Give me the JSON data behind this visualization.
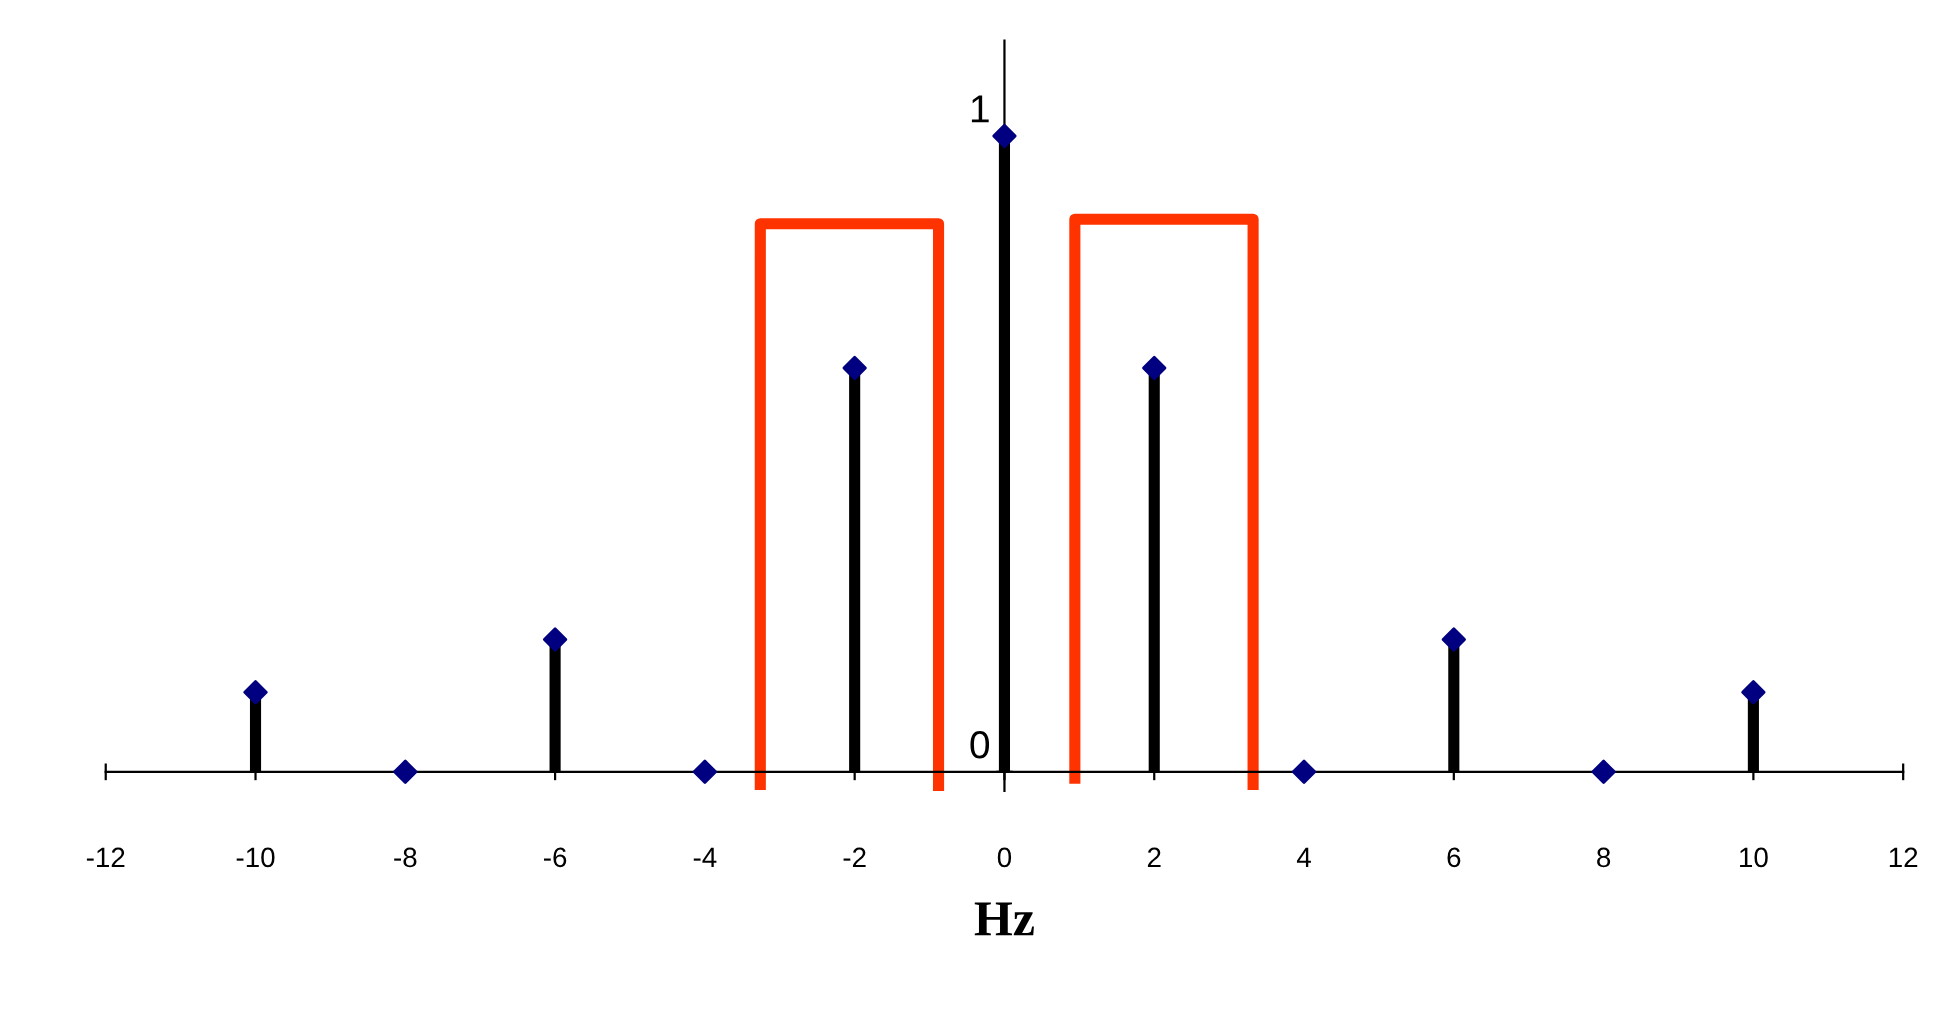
{
  "chart_data": {
    "type": "lollipop",
    "xlabel": "Hz",
    "x": [
      -10,
      -8,
      -6,
      -4,
      -2,
      0,
      2,
      4,
      6,
      8,
      10
    ],
    "series": [
      {
        "type": "lollipop",
        "color": "#000080",
        "values": [
          0.125,
          0,
          0.208,
          0,
          0.635,
          1,
          0.635,
          0,
          0.208,
          0,
          0.125
        ],
        "marker": "diamond"
      },
      {
        "type": "line",
        "color": "#ff3300",
        "x": [
          -3.26,
          -3.26,
          -0.88,
          -0.88
        ],
        "values": [
          -0.02,
          0.862,
          0.862,
          -0.025
        ],
        "marker": "none"
      },
      {
        "type": "line",
        "color": "#ff3300",
        "x": [
          0.94,
          0.94,
          3.32,
          3.32
        ],
        "values": [
          -0.01,
          0.869,
          0.869,
          -0.02
        ],
        "marker": "none"
      }
    ],
    "xlim": [
      -12,
      12
    ],
    "xticks": [
      -12,
      -10,
      -8,
      -6,
      -4,
      -2,
      0,
      2,
      4,
      6,
      8,
      10,
      12
    ],
    "ylim": [
      -0.03,
      1.15
    ],
    "yticks": [
      0,
      1
    ],
    "grid": false,
    "legend": false
  }
}
